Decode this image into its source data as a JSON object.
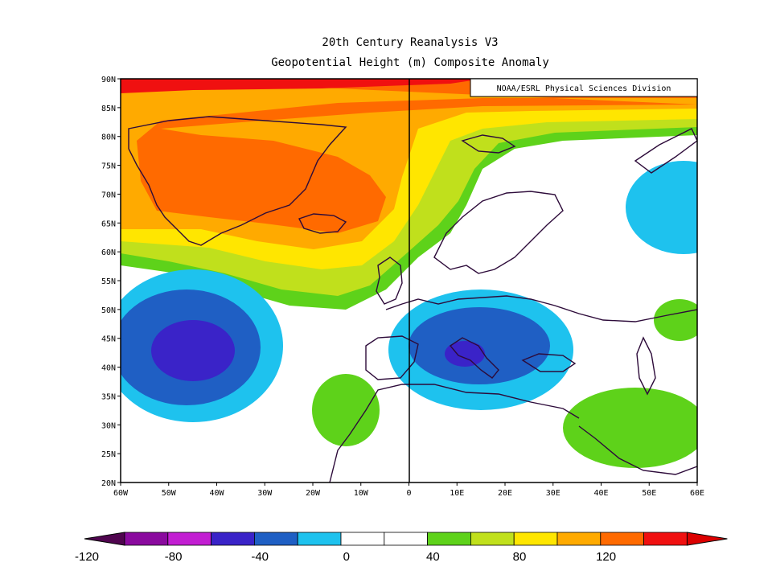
{
  "title": "20th Century Reanalysis V3",
  "subtitle": "Geopotential Height (m) Composite Anomaly",
  "credit": "NOAA/ESRL Physical Sciences Division",
  "map": {
    "lon_range": [
      -60,
      60
    ],
    "lat_range": [
      20,
      90
    ],
    "lat_ticks": [
      "90N",
      "85N",
      "80N",
      "75N",
      "70N",
      "65N",
      "60N",
      "55N",
      "50N",
      "45N",
      "40N",
      "35N",
      "30N",
      "25N",
      "20N"
    ],
    "lon_ticks": [
      "60W",
      "50W",
      "40W",
      "30W",
      "20W",
      "10W",
      "0",
      "10E",
      "20E",
      "30E",
      "40E",
      "50E",
      "60E"
    ],
    "zero_meridian": 0
  },
  "colorbar": {
    "levels": [
      -120,
      -100,
      -80,
      -60,
      -40,
      -20,
      0,
      20,
      40,
      60,
      80,
      100,
      120
    ],
    "colors": [
      "#8a0a9e",
      "#c21ed2",
      "#3a23c8",
      "#1f5fc4",
      "#1ec2ee",
      "#ffffff",
      "#ffffff",
      "#5ed21a",
      "#c0e01c",
      "#ffe600",
      "#ffaa00",
      "#ff6a00",
      "#f01010"
    ],
    "under_color": "#50054f",
    "over_color": "#dc0000",
    "labels": [
      "-120",
      "-80",
      "-40",
      "0",
      "40",
      "80",
      "120"
    ],
    "label_values": [
      -120,
      -80,
      -40,
      0,
      40,
      80,
      120
    ]
  },
  "anomaly_centers": [
    {
      "name": "greenland-high",
      "lon": -38,
      "lat": 70,
      "value": "+100"
    },
    {
      "name": "atlantic-low",
      "lon": -44,
      "lat": 44,
      "value": "-85"
    },
    {
      "name": "mediterranean-low",
      "lon": 10,
      "lat": 43,
      "value": "-70"
    },
    {
      "name": "northern-russia-low",
      "lon": 58,
      "lat": 69,
      "value": "-40"
    },
    {
      "name": "middle-east-high",
      "lon": 45,
      "lat": 33,
      "value": "+40"
    }
  ]
}
